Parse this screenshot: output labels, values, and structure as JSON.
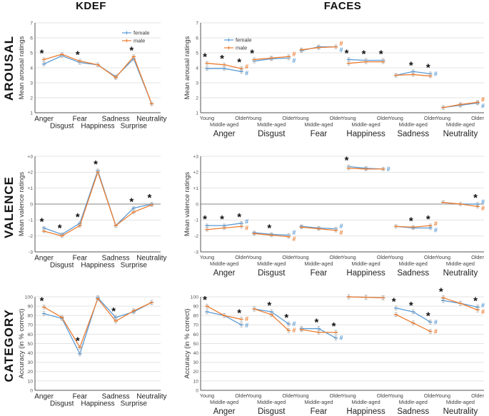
{
  "columns": [
    {
      "label": "KDEF"
    },
    {
      "label": "FACES"
    }
  ],
  "rows": [
    {
      "label": "AROUSAL"
    },
    {
      "label": "VALENCE"
    },
    {
      "label": "CATEGORY"
    }
  ],
  "legend": {
    "female": "female",
    "male": "male"
  },
  "colors": {
    "female": "#5B9BD5",
    "male": "#ED7D31",
    "star": "#111111",
    "hash_female": "#5B9BD5",
    "hash_male": "#ED7D31",
    "grid": "#e3e3e3",
    "zero": "#9e9e9e",
    "axis": "#555555",
    "error": "#b5b5b5",
    "tick_text": "#555555",
    "label_text": "#222222"
  },
  "age_labels": [
    "Young",
    "Middle-aged",
    "Older"
  ],
  "chart_data": [
    {
      "id": "kdef-arousal",
      "type": "line",
      "layout": "flat",
      "ylabel": "Mean arousal ratings",
      "ylim": [
        1,
        7
      ],
      "ytick_values": [
        7,
        6,
        5,
        4,
        3,
        2,
        1
      ],
      "ytick_labels": [
        "7",
        "6",
        "5",
        "4",
        "3",
        "2",
        "1"
      ],
      "groups": [
        "Anger",
        "Disgust",
        "Fear",
        "Happiness",
        "Sadness",
        "Surprise",
        "Neutrality"
      ],
      "series": [
        {
          "name": "female",
          "values": [
            4.25,
            4.8,
            4.35,
            4.2,
            3.4,
            4.6,
            1.6
          ]
        },
        {
          "name": "male",
          "values": [
            4.55,
            4.9,
            4.45,
            4.2,
            3.35,
            4.75,
            1.6
          ]
        }
      ],
      "err": 0.12,
      "stars": [
        {
          "g": 0,
          "s": 0
        },
        {
          "g": 2,
          "s": 0
        },
        {
          "g": 5,
          "s": 0
        }
      ],
      "hashes": [],
      "show_legend": true
    },
    {
      "id": "faces-arousal",
      "type": "line",
      "layout": "grouped",
      "ylabel": "Mean arousal ratings",
      "ylim": [
        1,
        7
      ],
      "ytick_values": [
        7,
        6,
        5,
        4,
        3,
        2,
        1
      ],
      "ytick_labels": [
        "7",
        "6",
        "5",
        "4",
        "3",
        "2",
        "1"
      ],
      "groups": [
        "Anger",
        "Disgust",
        "Fear",
        "Happiness",
        "Sadness",
        "Neutrality"
      ],
      "series": [
        {
          "name": "female",
          "values": [
            [
              3.95,
              3.95,
              3.75
            ],
            [
              4.45,
              4.6,
              4.65
            ],
            [
              5.15,
              5.4,
              5.4
            ],
            [
              4.55,
              4.5,
              4.5
            ],
            [
              3.5,
              3.75,
              3.6
            ],
            [
              1.35,
              1.5,
              1.65
            ]
          ]
        },
        {
          "name": "male",
          "values": [
            [
              4.3,
              4.2,
              3.95
            ],
            [
              4.55,
              4.65,
              4.75
            ],
            [
              5.2,
              5.35,
              5.4
            ],
            [
              4.3,
              4.4,
              4.4
            ],
            [
              3.5,
              3.55,
              3.45
            ],
            [
              1.35,
              1.55,
              1.7
            ]
          ]
        }
      ],
      "err": 0.12,
      "stars": [
        {
          "g": 0,
          "s": 0
        },
        {
          "g": 0,
          "s": 1
        },
        {
          "g": 0,
          "s": 2
        },
        {
          "g": 1,
          "s": 0
        },
        {
          "g": 3,
          "s": 0
        },
        {
          "g": 3,
          "s": 1
        },
        {
          "g": 3,
          "s": 2
        },
        {
          "g": 4,
          "s": 1
        },
        {
          "g": 4,
          "s": 2
        }
      ],
      "hashes": [
        {
          "g": 0,
          "s": 2,
          "series": "male"
        },
        {
          "g": 0,
          "s": 2,
          "series": "female"
        },
        {
          "g": 1,
          "s": 2,
          "series": "male"
        },
        {
          "g": 1,
          "s": 2,
          "series": "female"
        },
        {
          "g": 2,
          "s": 2,
          "series": "male"
        },
        {
          "g": 2,
          "s": 2,
          "series": "female"
        },
        {
          "g": 4,
          "s": 2,
          "series": "female"
        },
        {
          "g": 5,
          "s": 2,
          "series": "male"
        },
        {
          "g": 5,
          "s": 2,
          "series": "female"
        }
      ],
      "show_legend": true
    },
    {
      "id": "kdef-valence",
      "type": "line",
      "layout": "flat",
      "ylabel": "Mean valence ratings",
      "ylim": [
        -3,
        3
      ],
      "ytick_values": [
        3,
        2,
        1,
        0,
        -1,
        -2,
        -3
      ],
      "ytick_labels": [
        "+3",
        "+2",
        "+1",
        "0",
        "-1",
        "-2",
        "-3"
      ],
      "zero_line": true,
      "groups": [
        "Anger",
        "Disgust",
        "Fear",
        "Happiness",
        "Sadness",
        "Surprise",
        "Neutrality"
      ],
      "series": [
        {
          "name": "female",
          "values": [
            -1.5,
            -1.9,
            -1.2,
            2.1,
            -1.35,
            -0.25,
            0.0
          ]
        },
        {
          "name": "male",
          "values": [
            -1.7,
            -2.0,
            -1.35,
            2.0,
            -1.35,
            -0.5,
            -0.05
          ]
        }
      ],
      "err": 0.1,
      "stars": [
        {
          "g": 0,
          "s": 0
        },
        {
          "g": 1,
          "s": 0
        },
        {
          "g": 2,
          "s": 0
        },
        {
          "g": 3,
          "s": 0
        },
        {
          "g": 5,
          "s": 0
        },
        {
          "g": 6,
          "s": 0
        }
      ],
      "hashes": [],
      "show_legend": false
    },
    {
      "id": "faces-valence",
      "type": "line",
      "layout": "grouped",
      "ylabel": "Mean valence ratings",
      "ylim": [
        -3,
        3
      ],
      "ytick_values": [
        3,
        2,
        1,
        0,
        -1,
        -2,
        -3
      ],
      "ytick_labels": [
        "+3",
        "+2",
        "+1",
        "0",
        "-1",
        "-2",
        "-3"
      ],
      "zero_line": true,
      "groups": [
        "Anger",
        "Disgust",
        "Fear",
        "Happiness",
        "Sadness",
        "Neutrality"
      ],
      "series": [
        {
          "name": "female",
          "values": [
            [
              -1.35,
              -1.35,
              -1.2
            ],
            [
              -1.8,
              -1.9,
              -1.95
            ],
            [
              -1.4,
              -1.5,
              -1.55
            ],
            [
              2.35,
              2.25,
              2.2
            ],
            [
              -1.4,
              -1.5,
              -1.5
            ],
            [
              0.1,
              0.0,
              0.0
            ]
          ]
        },
        {
          "name": "male",
          "values": [
            [
              -1.6,
              -1.5,
              -1.4
            ],
            [
              -1.85,
              -1.95,
              -2.05
            ],
            [
              -1.45,
              -1.55,
              -1.65
            ],
            [
              2.25,
              2.2,
              2.2
            ],
            [
              -1.4,
              -1.45,
              -1.35
            ],
            [
              0.1,
              0.0,
              -0.15
            ]
          ]
        }
      ],
      "err": 0.1,
      "stars": [
        {
          "g": 0,
          "s": 0
        },
        {
          "g": 0,
          "s": 1
        },
        {
          "g": 0,
          "s": 2
        },
        {
          "g": 1,
          "s": 1
        },
        {
          "g": 3,
          "s": 0
        },
        {
          "g": 4,
          "s": 1
        },
        {
          "g": 4,
          "s": 2
        },
        {
          "g": 5,
          "s": 2
        }
      ],
      "hashes": [
        {
          "g": 0,
          "s": 2,
          "series": "female"
        },
        {
          "g": 0,
          "s": 2,
          "series": "male"
        },
        {
          "g": 1,
          "s": 2,
          "series": "female"
        },
        {
          "g": 1,
          "s": 2,
          "series": "male"
        },
        {
          "g": 2,
          "s": 2,
          "series": "female"
        },
        {
          "g": 2,
          "s": 2,
          "series": "male"
        },
        {
          "g": 3,
          "s": 2,
          "series": "female"
        },
        {
          "g": 4,
          "s": 2,
          "series": "male"
        },
        {
          "g": 4,
          "s": 2,
          "series": "female"
        },
        {
          "g": 5,
          "s": 2,
          "series": "female"
        },
        {
          "g": 5,
          "s": 2,
          "series": "male"
        }
      ],
      "show_legend": false
    },
    {
      "id": "kdef-category",
      "type": "line",
      "layout": "flat",
      "ylabel": "Accuracy (in % correct)",
      "ylim": [
        0,
        100
      ],
      "ytick_values": [
        100,
        90,
        80,
        70,
        60,
        50,
        40,
        30,
        20,
        10,
        0
      ],
      "ytick_labels": [
        "100",
        "90",
        "80",
        "70",
        "60",
        "50",
        "40",
        "30",
        "20",
        "10",
        "0"
      ],
      "groups": [
        "Anger",
        "Disgust",
        "Fear",
        "Happiness",
        "Sadness",
        "Surprise",
        "Neutrality"
      ],
      "series": [
        {
          "name": "female",
          "values": [
            82,
            77,
            39,
            99,
            78,
            84,
            94
          ]
        },
        {
          "name": "male",
          "values": [
            89,
            78,
            46,
            98,
            74,
            85,
            94
          ]
        }
      ],
      "err": 2.2,
      "stars": [
        {
          "g": 0,
          "s": 0
        },
        {
          "g": 2,
          "s": 0
        },
        {
          "g": 4,
          "s": 0
        }
      ],
      "hashes": [],
      "show_legend": false
    },
    {
      "id": "faces-category",
      "type": "line",
      "layout": "grouped",
      "ylabel": "Accuracy (in % correct)",
      "ylim": [
        0,
        100
      ],
      "ytick_values": [
        100,
        90,
        80,
        70,
        60,
        50,
        40,
        30,
        20,
        10,
        0
      ],
      "ytick_labels": [
        "100",
        "90",
        "80",
        "70",
        "60",
        "50",
        "40",
        "30",
        "20",
        "10",
        "0"
      ],
      "groups": [
        "Anger",
        "Disgust",
        "Fear",
        "Happiness",
        "Sadness",
        "Neutrality"
      ],
      "series": [
        {
          "name": "female",
          "values": [
            [
              84,
              80,
              70
            ],
            [
              87,
              84,
              71
            ],
            [
              66,
              66,
              56
            ],
            [
              100,
              99.5,
              99
            ],
            [
              88,
              84,
              73
            ],
            [
              96,
              93,
              89
            ]
          ]
        },
        {
          "name": "male",
          "values": [
            [
              90,
              80,
              76
            ],
            [
              87,
              81,
              64
            ],
            [
              65,
              62,
              62
            ],
            [
              100,
              99.5,
              99
            ],
            [
              81,
              72,
              63
            ],
            [
              99,
              93,
              86
            ]
          ]
        }
      ],
      "err": 2.2,
      "stars": [
        {
          "g": 0,
          "s": 0
        },
        {
          "g": 0,
          "s": 2
        },
        {
          "g": 1,
          "s": 1
        },
        {
          "g": 1,
          "s": 2
        },
        {
          "g": 2,
          "s": 1
        },
        {
          "g": 2,
          "s": 2
        },
        {
          "g": 4,
          "s": 0
        },
        {
          "g": 4,
          "s": 1
        },
        {
          "g": 4,
          "s": 2
        },
        {
          "g": 5,
          "s": 0
        },
        {
          "g": 5,
          "s": 2
        }
      ],
      "hashes": [
        {
          "g": 0,
          "s": 2,
          "series": "male"
        },
        {
          "g": 0,
          "s": 2,
          "series": "female"
        },
        {
          "g": 1,
          "s": 2,
          "series": "female"
        },
        {
          "g": 1,
          "s": 2,
          "series": "male"
        },
        {
          "g": 2,
          "s": 2,
          "series": "female"
        },
        {
          "g": 4,
          "s": 2,
          "series": "female"
        },
        {
          "g": 4,
          "s": 2,
          "series": "male"
        },
        {
          "g": 5,
          "s": 2,
          "series": "female"
        },
        {
          "g": 5,
          "s": 2,
          "series": "male"
        }
      ],
      "show_legend": false
    }
  ]
}
